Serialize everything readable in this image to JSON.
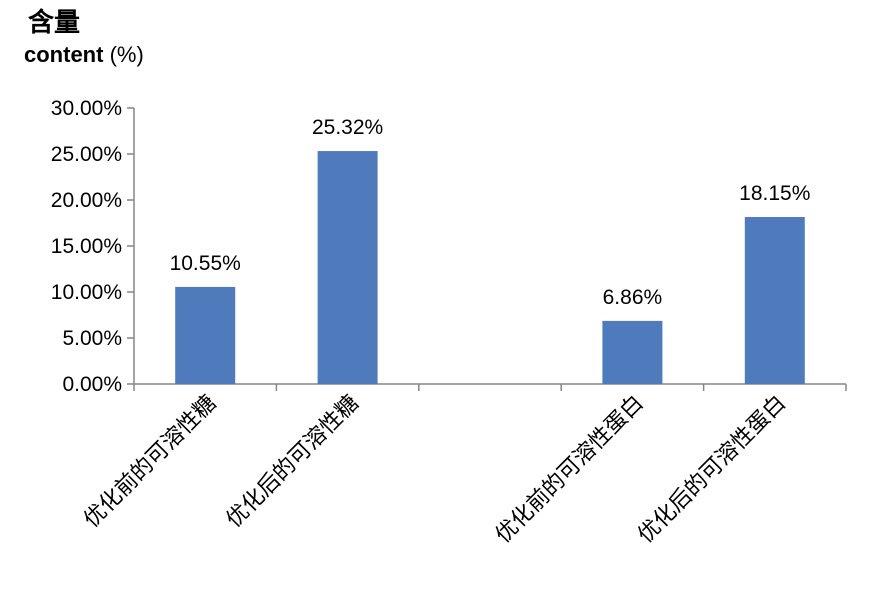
{
  "chart_data": {
    "type": "bar",
    "ylabel_cn": "含量",
    "ylabel_en_bold": "content",
    "ylabel_en_unit": " (%)",
    "categories": [
      "优化前的可溶性糖",
      "优化后的可溶性糖",
      "",
      "优化前的可溶性蛋白",
      "优化后的可溶性蛋白"
    ],
    "values": [
      10.55,
      25.32,
      null,
      6.86,
      18.15
    ],
    "data_labels": [
      "10.55%",
      "25.32%",
      "",
      "6.86%",
      "18.15%"
    ],
    "ylim": [
      0,
      30
    ],
    "yticks": [
      0,
      5,
      10,
      15,
      20,
      25,
      30
    ],
    "ytick_labels": [
      "0.00%",
      "5.00%",
      "10.00%",
      "15.00%",
      "20.00%",
      "25.00%",
      "30.00%"
    ],
    "bar_color": "#4f7bbd",
    "grid": false,
    "legend": "none"
  }
}
